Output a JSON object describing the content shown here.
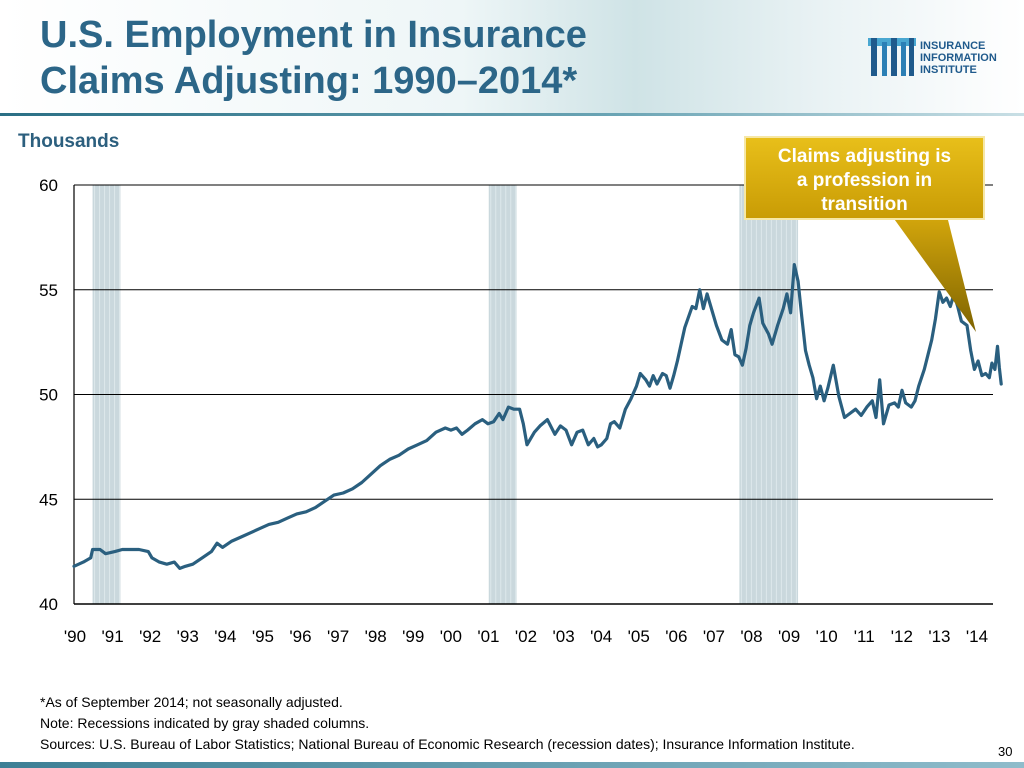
{
  "header": {
    "title_line1": "U.S. Employment in Insurance",
    "title_line2": "Claims Adjusting: 1990–2014*"
  },
  "logo": {
    "line1": "INSURANCE",
    "line2": "INFORMATION",
    "line3": "INSTITUTE",
    "icon": "iii-logo-icon"
  },
  "callout": {
    "line1": "Claims adjusting is",
    "line2": "a profession in",
    "line3": "transition"
  },
  "chart_data": {
    "type": "line",
    "title": "U.S. Employment in Insurance Claims Adjusting: 1990–2014*",
    "ylabel": "Thousands",
    "ylim": [
      40,
      60
    ],
    "yticks": [
      40,
      45,
      50,
      55,
      60
    ],
    "ytick_labels": [
      "40",
      "45",
      "50",
      "55",
      "60"
    ],
    "xlim": [
      1990,
      2014.75
    ],
    "xtick_labels": [
      "'90",
      "'91",
      "'92",
      "'93",
      "'94",
      "'95",
      "'96",
      "'97",
      "'98",
      "'99",
      "'00",
      "'01",
      "'02",
      "'03",
      "'04",
      "'05",
      "'06",
      "'07",
      "'08",
      "'09",
      "'10",
      "'11",
      "'12",
      "'13",
      "'14"
    ],
    "grid": true,
    "legend": "none",
    "recessions": [
      {
        "start": 1990.5,
        "end": 1991.25
      },
      {
        "start": 2001.17,
        "end": 2001.92
      },
      {
        "start": 2007.92,
        "end": 2009.5
      }
    ],
    "series": [
      {
        "name": "Claims adjusting employment",
        "color": "#2a5f7f",
        "points": [
          [
            1990.0,
            41.8
          ],
          [
            1990.25,
            42.0
          ],
          [
            1990.45,
            42.2
          ],
          [
            1990.5,
            42.6
          ],
          [
            1990.7,
            42.6
          ],
          [
            1990.85,
            42.4
          ],
          [
            1991.1,
            42.5
          ],
          [
            1991.3,
            42.6
          ],
          [
            1991.55,
            42.6
          ],
          [
            1991.75,
            42.6
          ],
          [
            1992.0,
            42.5
          ],
          [
            1992.1,
            42.2
          ],
          [
            1992.3,
            42.0
          ],
          [
            1992.5,
            41.9
          ],
          [
            1992.7,
            42.0
          ],
          [
            1992.85,
            41.7
          ],
          [
            1993.0,
            41.8
          ],
          [
            1993.2,
            41.9
          ],
          [
            1993.45,
            42.2
          ],
          [
            1993.7,
            42.5
          ],
          [
            1993.85,
            42.9
          ],
          [
            1994.0,
            42.7
          ],
          [
            1994.25,
            43.0
          ],
          [
            1994.5,
            43.2
          ],
          [
            1994.75,
            43.4
          ],
          [
            1995.0,
            43.6
          ],
          [
            1995.25,
            43.8
          ],
          [
            1995.5,
            43.9
          ],
          [
            1995.75,
            44.1
          ],
          [
            1996.0,
            44.3
          ],
          [
            1996.25,
            44.4
          ],
          [
            1996.5,
            44.6
          ],
          [
            1996.75,
            44.9
          ],
          [
            1997.0,
            45.2
          ],
          [
            1997.25,
            45.3
          ],
          [
            1997.5,
            45.5
          ],
          [
            1997.75,
            45.8
          ],
          [
            1998.0,
            46.2
          ],
          [
            1998.25,
            46.6
          ],
          [
            1998.5,
            46.9
          ],
          [
            1998.75,
            47.1
          ],
          [
            1999.0,
            47.4
          ],
          [
            1999.25,
            47.6
          ],
          [
            1999.5,
            47.8
          ],
          [
            1999.75,
            48.2
          ],
          [
            2000.0,
            48.4
          ],
          [
            2000.15,
            48.3
          ],
          [
            2000.3,
            48.4
          ],
          [
            2000.45,
            48.1
          ],
          [
            2000.6,
            48.3
          ],
          [
            2000.8,
            48.6
          ],
          [
            2001.0,
            48.8
          ],
          [
            2001.15,
            48.6
          ],
          [
            2001.3,
            48.7
          ],
          [
            2001.45,
            49.1
          ],
          [
            2001.55,
            48.8
          ],
          [
            2001.7,
            49.4
          ],
          [
            2001.85,
            49.3
          ],
          [
            2002.0,
            49.3
          ],
          [
            2002.1,
            48.6
          ],
          [
            2002.2,
            47.6
          ],
          [
            2002.4,
            48.2
          ],
          [
            2002.55,
            48.5
          ],
          [
            2002.75,
            48.8
          ],
          [
            2002.95,
            48.1
          ],
          [
            2003.1,
            48.5
          ],
          [
            2003.25,
            48.3
          ],
          [
            2003.4,
            47.6
          ],
          [
            2003.55,
            48.2
          ],
          [
            2003.7,
            48.3
          ],
          [
            2003.85,
            47.6
          ],
          [
            2004.0,
            47.9
          ],
          [
            2004.1,
            47.5
          ],
          [
            2004.2,
            47.6
          ],
          [
            2004.35,
            47.9
          ],
          [
            2004.45,
            48.6
          ],
          [
            2004.55,
            48.7
          ],
          [
            2004.7,
            48.4
          ],
          [
            2004.85,
            49.3
          ],
          [
            2005.0,
            49.8
          ],
          [
            2005.15,
            50.4
          ],
          [
            2005.25,
            51.0
          ],
          [
            2005.4,
            50.7
          ],
          [
            2005.5,
            50.4
          ],
          [
            2005.6,
            50.9
          ],
          [
            2005.7,
            50.5
          ],
          [
            2005.85,
            51.0
          ],
          [
            2005.95,
            50.9
          ],
          [
            2006.05,
            50.3
          ],
          [
            2006.15,
            50.9
          ],
          [
            2006.25,
            51.6
          ],
          [
            2006.35,
            52.4
          ],
          [
            2006.45,
            53.2
          ],
          [
            2006.55,
            53.7
          ],
          [
            2006.65,
            54.2
          ],
          [
            2006.75,
            54.1
          ],
          [
            2006.85,
            55.0
          ],
          [
            2006.95,
            54.1
          ],
          [
            2007.05,
            54.8
          ],
          [
            2007.15,
            54.2
          ],
          [
            2007.3,
            53.3
          ],
          [
            2007.45,
            52.6
          ],
          [
            2007.6,
            52.4
          ],
          [
            2007.7,
            53.1
          ],
          [
            2007.8,
            51.9
          ],
          [
            2007.9,
            51.8
          ],
          [
            2008.0,
            51.4
          ],
          [
            2008.1,
            52.2
          ],
          [
            2008.2,
            53.3
          ],
          [
            2008.3,
            53.9
          ],
          [
            2008.45,
            54.6
          ],
          [
            2008.55,
            53.4
          ],
          [
            2008.7,
            52.9
          ],
          [
            2008.8,
            52.4
          ],
          [
            2008.95,
            53.3
          ],
          [
            2009.1,
            54.1
          ],
          [
            2009.2,
            54.8
          ],
          [
            2009.3,
            53.9
          ],
          [
            2009.4,
            56.2
          ],
          [
            2009.5,
            55.4
          ],
          [
            2009.6,
            53.7
          ],
          [
            2009.7,
            52.1
          ],
          [
            2009.8,
            51.4
          ],
          [
            2009.9,
            50.8
          ],
          [
            2010.0,
            49.8
          ],
          [
            2010.1,
            50.4
          ],
          [
            2010.2,
            49.7
          ],
          [
            2010.3,
            50.3
          ],
          [
            2010.45,
            51.4
          ],
          [
            2010.6,
            49.9
          ],
          [
            2010.75,
            48.9
          ],
          [
            2010.9,
            49.1
          ],
          [
            2011.05,
            49.3
          ],
          [
            2011.2,
            49.0
          ],
          [
            2011.35,
            49.4
          ],
          [
            2011.5,
            49.7
          ],
          [
            2011.6,
            48.9
          ],
          [
            2011.7,
            50.7
          ],
          [
            2011.8,
            48.6
          ],
          [
            2011.95,
            49.5
          ],
          [
            2012.1,
            49.6
          ],
          [
            2012.2,
            49.4
          ],
          [
            2012.3,
            50.2
          ],
          [
            2012.4,
            49.6
          ],
          [
            2012.55,
            49.4
          ],
          [
            2012.65,
            49.7
          ],
          [
            2012.75,
            50.4
          ],
          [
            2012.9,
            51.2
          ],
          [
            2013.0,
            51.9
          ],
          [
            2013.1,
            52.6
          ],
          [
            2013.2,
            53.6
          ],
          [
            2013.3,
            54.9
          ],
          [
            2013.4,
            54.4
          ],
          [
            2013.5,
            54.6
          ],
          [
            2013.6,
            54.2
          ],
          [
            2013.7,
            54.8
          ],
          [
            2013.8,
            54.2
          ],
          [
            2013.9,
            53.5
          ],
          [
            2014.05,
            53.3
          ],
          [
            2014.15,
            52.1
          ],
          [
            2014.25,
            51.2
          ],
          [
            2014.35,
            51.6
          ],
          [
            2014.45,
            50.9
          ],
          [
            2014.55,
            51.0
          ],
          [
            2014.65,
            50.8
          ],
          [
            2014.72,
            51.5
          ],
          [
            2014.8,
            51.2
          ],
          [
            2014.87,
            52.3
          ],
          [
            2014.92,
            51.3
          ],
          [
            2014.97,
            50.5
          ]
        ]
      }
    ]
  },
  "footnotes": {
    "line1": "*As of September 2014; not seasonally adjusted.",
    "line2": "Note: Recessions indicated by gray shaded columns.",
    "line3": "Sources: U.S. Bureau of Labor Statistics;  National Bureau of Economic Research (recession dates); Insurance Information Institute."
  },
  "page_number": "30"
}
